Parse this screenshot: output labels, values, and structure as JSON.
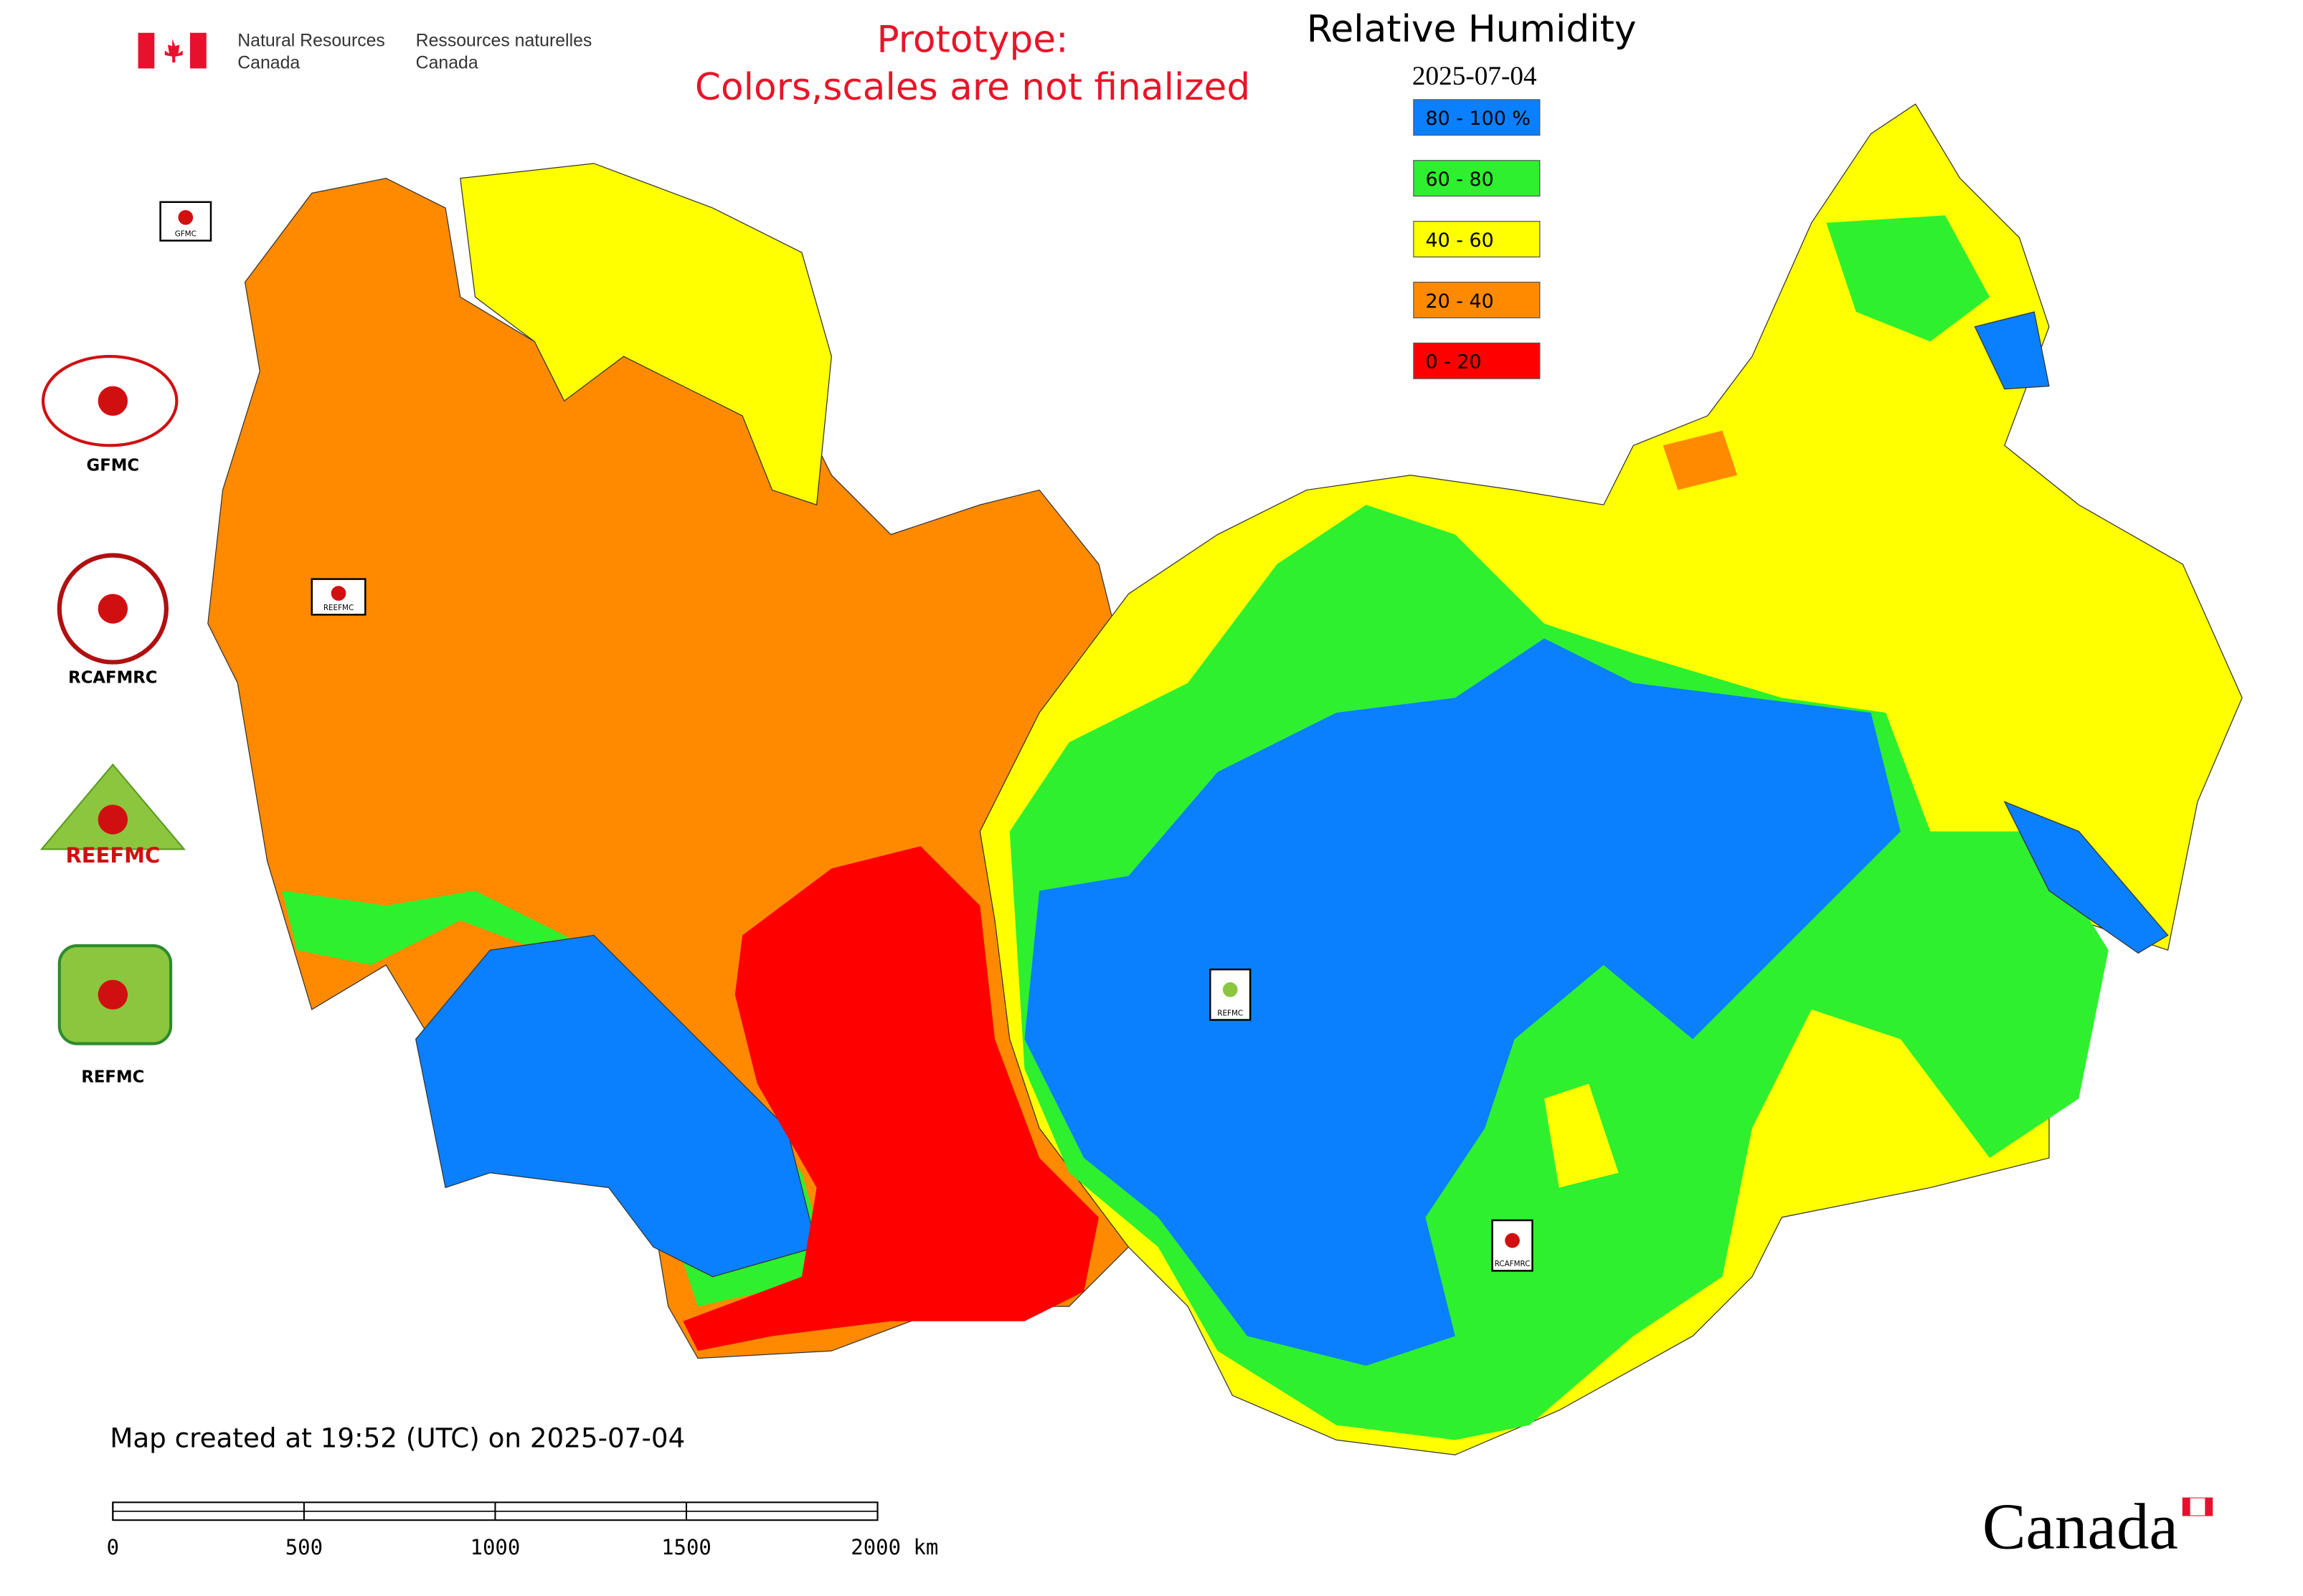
{
  "header": {
    "department_en": [
      "Natural Resources",
      "Canada"
    ],
    "department_fr": [
      "Ressources naturelles",
      "Canada"
    ]
  },
  "notice": [
    "Prototype:",
    "Colors,scales are not finalized"
  ],
  "title": "Relative Humidity",
  "date": "2025-07-04",
  "legend": [
    {
      "label": "80 - 100 %",
      "color": "#0a80ff"
    },
    {
      "label": "60 - 80",
      "color": "#2ef02e"
    },
    {
      "label": "40 - 60",
      "color": "#ffff00"
    },
    {
      "label": "20 - 40",
      "color": "#ff8a00"
    },
    {
      "label": "0 - 20",
      "color": "#ff0000"
    }
  ],
  "logos": [
    "GFMC",
    "RCAFMRC",
    "REEFMC",
    "REFMC"
  ],
  "map_markers": [
    "GFMC",
    "REEFMC",
    "REFMC",
    "RCAFMRC"
  ],
  "footer": "Map created at 19:52 (UTC) on 2025-07-04",
  "scale_bar": {
    "xlim": [
      0,
      2000
    ],
    "ticks": [
      0,
      500,
      1000,
      1500,
      {
        "value": 2000,
        "label": "2000 km"
      }
    ]
  },
  "wordmark": "Canada"
}
